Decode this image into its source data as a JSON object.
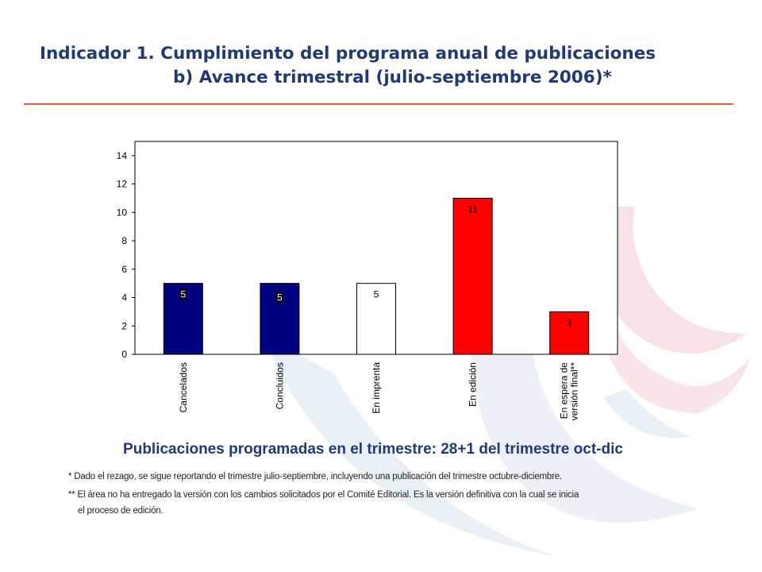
{
  "header": {
    "title_line1": "Indicador 1. Cumplimiento del programa anual de publicaciones",
    "title_line2": "b) Avance trimestral (julio-septiembre 2006)*"
  },
  "subtitle": "Publicaciones programadas en el trimestre: 28+1 del trimestre oct-dic",
  "notes": {
    "note1": "*  Dado el rezago, se sigue reportando  el trimestre julio-septiembre, incluyendo una publicación del trimestre octubre-diciembre.",
    "note2_line1": "** El área no ha entregado  la versión con los cambios solicitados por el Comité Editorial. Es la versión definitiva con la cual se inicia",
    "note2_line2": "el proceso de edición."
  },
  "colors": {
    "title": "#1f3a7a",
    "rule": "#e8642c",
    "navy": "#000080",
    "red": "#ff0000",
    "white": "#ffffff"
  },
  "chart_data": {
    "type": "bar",
    "categories": [
      "Cancelados",
      "Concluidos",
      "En imprenta",
      "En edición",
      "En espera de versión final**"
    ],
    "category_lines": [
      [
        "Cancelados"
      ],
      [
        "Concluidos"
      ],
      [
        "En imprenta"
      ],
      [
        "En edición"
      ],
      [
        "En espera de",
        "versión final**"
      ]
    ],
    "values": [
      5,
      5,
      5,
      11,
      3
    ],
    "data_labels": [
      "5",
      "5",
      "5",
      "11",
      "3"
    ],
    "bar_colors": [
      "#000080",
      "#000080",
      "#ffffff",
      "#ff0000",
      "#ff0000"
    ],
    "ylim": [
      0,
      15
    ],
    "yticks": [
      0,
      2,
      4,
      6,
      8,
      10,
      12,
      14
    ],
    "grid": false,
    "legend": "none"
  }
}
